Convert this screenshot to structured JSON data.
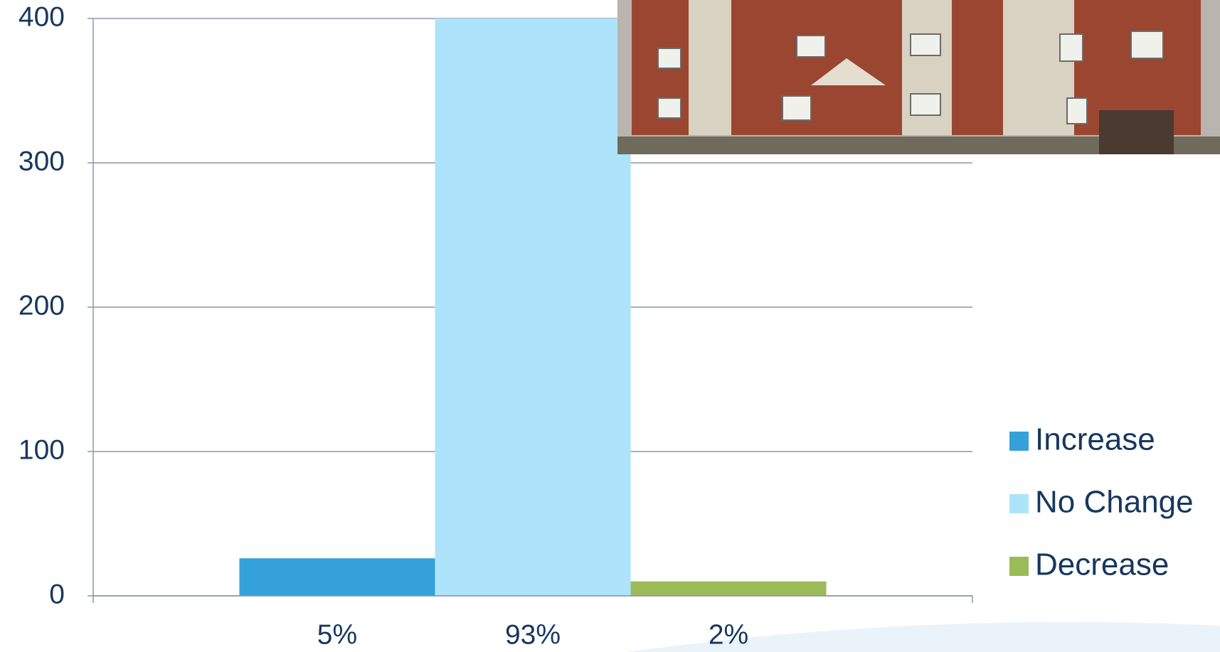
{
  "chart_data": {
    "type": "bar",
    "categories": [
      null
    ],
    "x_labels": [
      "5%",
      "93%",
      "2%"
    ],
    "series": [
      {
        "name": "Increase",
        "color": "#34a1d8",
        "values": [
          26
        ]
      },
      {
        "name": "No Change",
        "color": "#aee4fb",
        "values": [
          400
        ]
      },
      {
        "name": "Decrease",
        "color": "#9bbb59",
        "values": [
          10
        ]
      }
    ],
    "ylim": [
      0,
      400
    ],
    "yticks": [
      0,
      100,
      200,
      300,
      400
    ],
    "grid": true,
    "legend": "right"
  }
}
